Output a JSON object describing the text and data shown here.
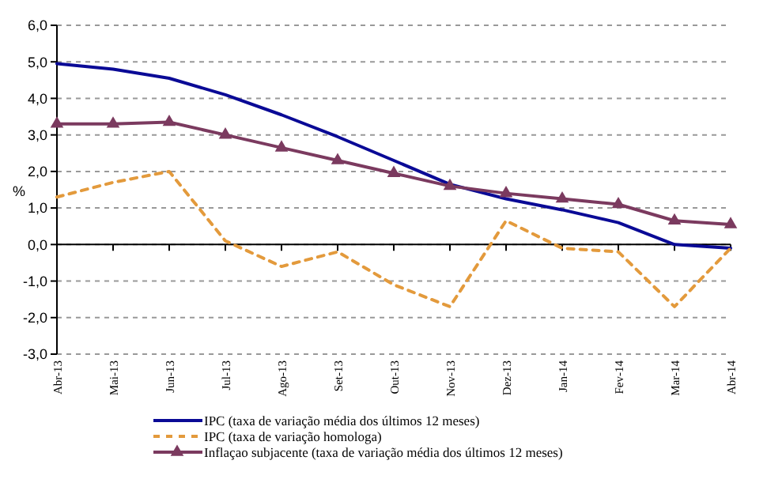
{
  "chart_data": {
    "type": "line",
    "ylabel": "%",
    "categories": [
      "Abr-13",
      "Mai-13",
      "Jun-13",
      "Jul-13",
      "Ago-13",
      "Set-13",
      "Out-13",
      "Nov-13",
      "Dez-13",
      "Jan-14",
      "Fev-14",
      "Mar-14",
      "Abr-14"
    ],
    "series": [
      {
        "name": "IPC (taxa de variação média dos últimos 12 meses)",
        "color": "#0a0a96",
        "line_style": "solid",
        "marker": "none",
        "values": [
          4.95,
          4.8,
          4.55,
          4.1,
          3.55,
          2.95,
          2.3,
          1.65,
          1.25,
          0.95,
          0.6,
          0.0,
          -0.1
        ]
      },
      {
        "name": "IPC (taxa de variação homologa)",
        "color": "#e39a3c",
        "line_style": "dashed",
        "marker": "none",
        "values": [
          1.3,
          1.7,
          2.0,
          0.1,
          -0.6,
          -0.2,
          -1.1,
          -1.7,
          0.65,
          -0.1,
          -0.2,
          -1.7,
          -0.1
        ]
      },
      {
        "name": "Inflaçao subjacente (taxa de variação média dos últimos 12 meses)",
        "color": "#7b3a5f",
        "line_style": "solid",
        "marker": "triangle",
        "values": [
          3.3,
          3.3,
          3.35,
          3.0,
          2.65,
          2.3,
          1.95,
          1.6,
          1.4,
          1.25,
          1.1,
          0.65,
          0.55
        ]
      }
    ],
    "ylim": [
      -3,
      6
    ],
    "yticks": [
      {
        "value": -3,
        "label": "-3,0"
      },
      {
        "value": -2,
        "label": "-2,0"
      },
      {
        "value": -1,
        "label": "-1,0"
      },
      {
        "value": 0,
        "label": "0,0"
      },
      {
        "value": 1,
        "label": "1,0"
      },
      {
        "value": 2,
        "label": "2,0"
      },
      {
        "value": 3,
        "label": "3,0"
      },
      {
        "value": 4,
        "label": "4,0"
      },
      {
        "value": 5,
        "label": "5,0"
      },
      {
        "value": 6,
        "label": "6,0"
      }
    ],
    "grid": "y",
    "legend": "bottom"
  }
}
